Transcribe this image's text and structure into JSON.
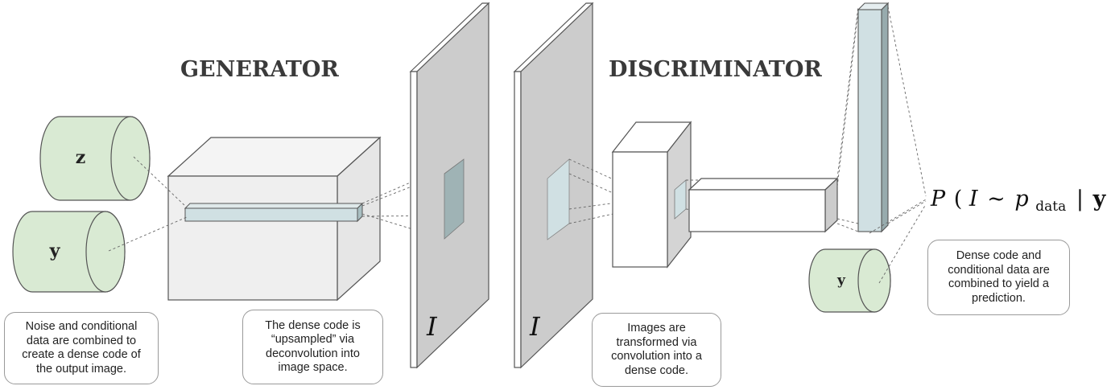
{
  "titles": {
    "generator": "GENERATOR",
    "discriminator": "DISCRIMINATOR"
  },
  "cylinders": {
    "z": "z",
    "y_generator": "y",
    "y_discriminator": "y"
  },
  "image_label": "I",
  "formula": {
    "prefix": "P",
    "open": "(",
    "I": "I",
    "sim": "∼",
    "p": "p",
    "sub": "data",
    "bar": "|",
    "y": "y",
    "close": ")"
  },
  "notes": {
    "noise": "Noise and conditional data are combined to create a dense code of the output image.",
    "upsampled": "The dense code is “upsampled” via deconvolution into image space.",
    "images": "Images are transformed via convolution into a dense code.",
    "prediction": "Dense code and conditional data are combined to yield a prediction."
  },
  "colors": {
    "green_fill": "#d9ead3",
    "slab_gray": "#cccccc",
    "blue_fill": "#d0e0e3",
    "cube_fill": "#efefef",
    "line_gray": "#666666"
  }
}
